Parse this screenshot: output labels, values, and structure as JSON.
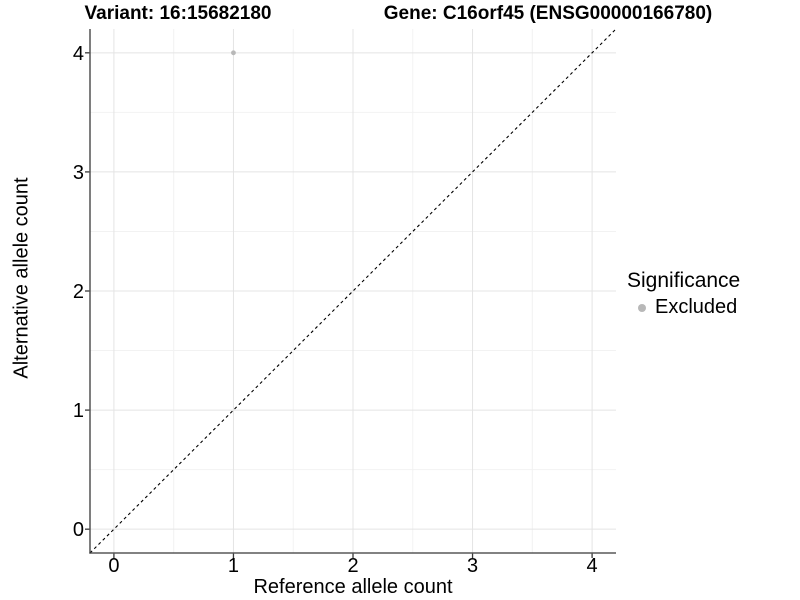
{
  "chart_data": {
    "type": "scatter",
    "title_variant": "Variant: 16:15682180",
    "title_gene": "Gene: C16orf45 (ENSG00000166780)",
    "xlabel": "Reference allele count",
    "ylabel": "Alternative allele count",
    "xlim": [
      -0.2,
      4.2
    ],
    "ylim": [
      -0.2,
      4.2
    ],
    "x_ticks": [
      0,
      1,
      2,
      3,
      4
    ],
    "y_ticks": [
      0,
      1,
      2,
      3,
      4
    ],
    "x_minor_ticks": [
      0.5,
      1.5,
      2.5,
      3.5
    ],
    "y_minor_ticks": [
      0.5,
      1.5,
      2.5,
      3.5
    ],
    "grid": "major-and-minor",
    "identity_line": {
      "style": "dashed",
      "from": -0.2,
      "to": 4.2,
      "color": "#000000"
    },
    "series": [
      {
        "name": "Excluded",
        "color": "#b8b8b8",
        "points": [
          {
            "x": 1,
            "y": 4
          }
        ]
      }
    ],
    "legend": {
      "title": "Significance",
      "position": "right",
      "items": [
        {
          "label": "Excluded",
          "color": "#b8b8b8"
        }
      ]
    },
    "colors": {
      "background": "#ffffff",
      "grid_major": "#e4e4e4",
      "grid_minor": "#f2f2f2",
      "axis_line": "#383838",
      "tick_mark": "#383838",
      "text": "#000000"
    }
  }
}
